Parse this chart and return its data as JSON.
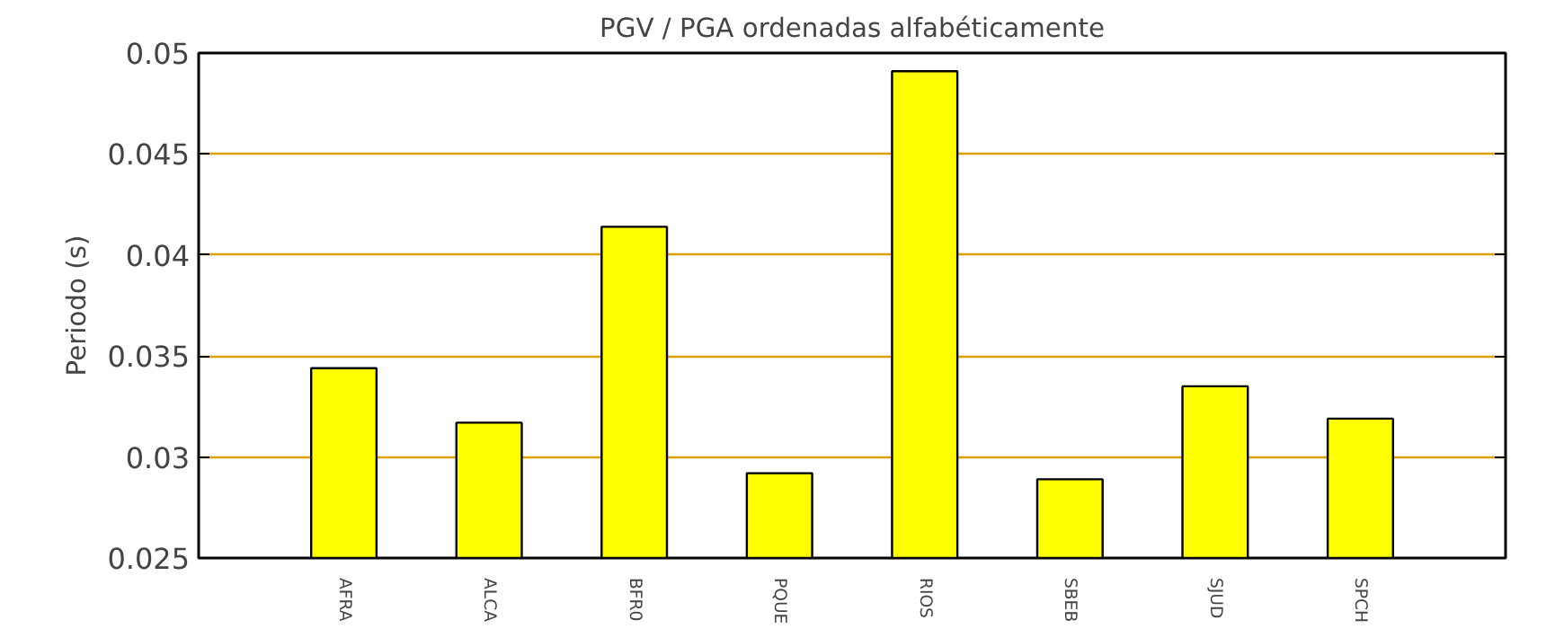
{
  "chart_data": {
    "type": "bar",
    "title": "PGV / PGA ordenadas alfabéticamente",
    "ylabel": "Periodo (s)",
    "categories": [
      "AFRA",
      "ALCA",
      "BFR0",
      "PQUE",
      "RIOS",
      "SBEB",
      "SJUD",
      "SPCH"
    ],
    "series": [
      {
        "color": "#ffff00",
        "values": [
          0.0344,
          0.0317,
          0.0414,
          0.0292,
          0.0491,
          0.0289,
          0.0335,
          0.0319
        ]
      }
    ],
    "ylim": [
      0.025,
      0.05
    ],
    "yticks": [
      0.025,
      0.03,
      0.035,
      0.04,
      0.045,
      0.05
    ],
    "grid": "y"
  }
}
